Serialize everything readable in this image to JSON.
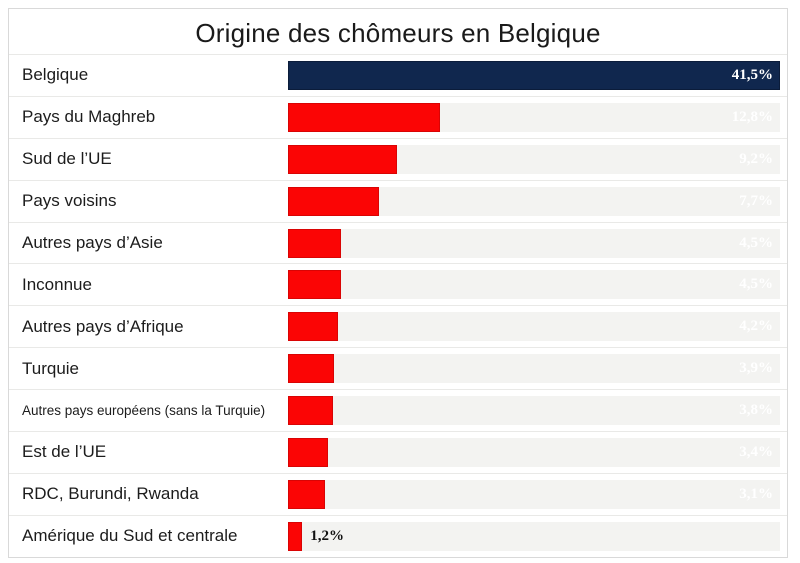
{
  "title": "Origine des chômeurs en Belgique",
  "colors": {
    "highlight_bar": "#10274e",
    "default_bar": "#fb0505",
    "track": "#f3f3f1",
    "value_text_inside": "#ffffff",
    "value_text_outside": "#111111",
    "label_text": "#1c1c1c"
  },
  "chart_data": {
    "type": "bar",
    "orientation": "horizontal",
    "title": "Origine des chômeurs en Belgique",
    "xlabel": "",
    "ylabel": "",
    "xlim": [
      0,
      41.5
    ],
    "grid": false,
    "legend": "none",
    "value_suffix": "%",
    "decimal_separator": ",",
    "categories": [
      "Belgique",
      "Pays du Maghreb",
      "Sud de l’UE",
      "Pays voisins",
      "Autres pays d’Asie",
      "Inconnue",
      "Autres pays d’Afrique",
      "Turquie",
      "Autres pays européens (sans la Turquie)",
      "Est de l’UE",
      "RDC, Burundi, Rwanda",
      "Amérique du Sud et centrale"
    ],
    "values": [
      41.5,
      12.8,
      9.2,
      7.7,
      4.5,
      4.5,
      4.2,
      3.9,
      3.8,
      3.4,
      3.1,
      1.2
    ],
    "rows": [
      {
        "label": "Belgique",
        "value": 41.5,
        "value_label": "41,5%",
        "highlight": true
      },
      {
        "label": "Pays du Maghreb",
        "value": 12.8,
        "value_label": "12,8%"
      },
      {
        "label": "Sud de l’UE",
        "value": 9.2,
        "value_label": "9,2%"
      },
      {
        "label": "Pays voisins",
        "value": 7.7,
        "value_label": "7,7%"
      },
      {
        "label": "Autres pays d’Asie",
        "value": 4.5,
        "value_label": "4,5%"
      },
      {
        "label": "Inconnue",
        "value": 4.5,
        "value_label": "4,5%"
      },
      {
        "label": "Autres pays d’Afrique",
        "value": 4.2,
        "value_label": "4,2%"
      },
      {
        "label": "Turquie",
        "value": 3.9,
        "value_label": "3,9%"
      },
      {
        "label": "Autres pays européens (sans la Turquie)",
        "value": 3.8,
        "value_label": "3,8%",
        "small_label": true
      },
      {
        "label": "Est de l’UE",
        "value": 3.4,
        "value_label": "3,4%"
      },
      {
        "label": "RDC, Burundi, Rwanda",
        "value": 3.1,
        "value_label": "3,1%"
      },
      {
        "label": "Amérique du Sud et centrale",
        "value": 1.2,
        "value_label": "1,2%",
        "value_outside": true
      }
    ]
  }
}
